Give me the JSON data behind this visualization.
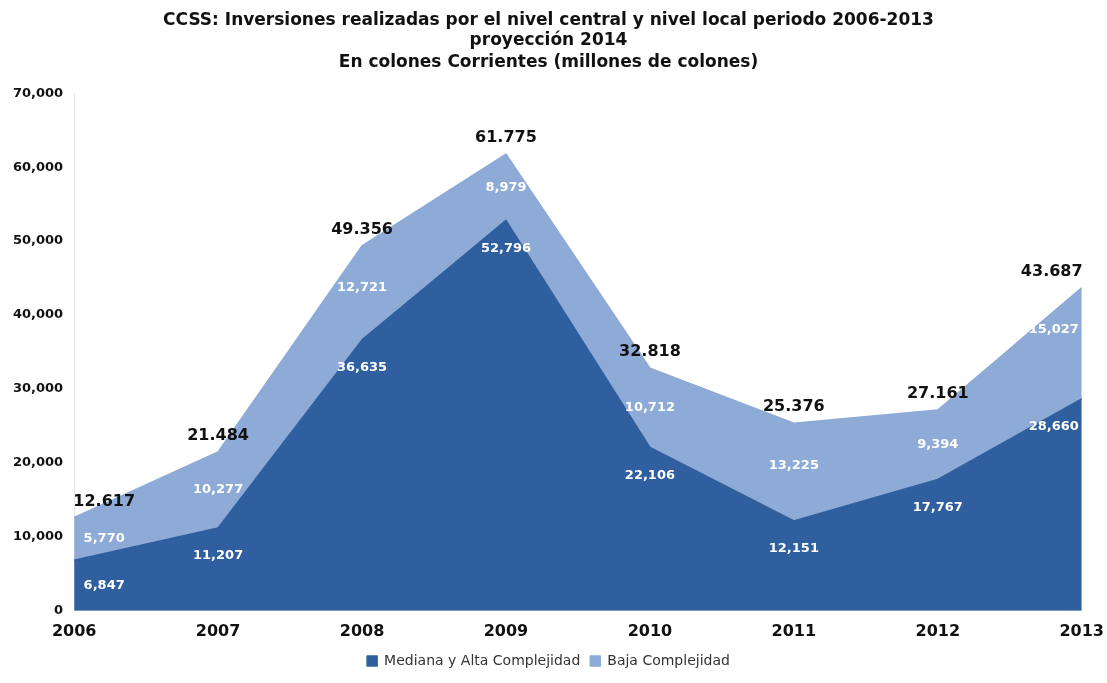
{
  "chart_data": {
    "type": "area",
    "title": "CCSS: Inversiones realizadas por el nivel central y nivel local periodo 2006-2013\nproyección 2014",
    "subtitle": "En colones Corrientes (millones de colones)",
    "categories": [
      "2006",
      "2007",
      "2008",
      "2009",
      "2010",
      "2011",
      "2012",
      "2013"
    ],
    "stacked": true,
    "series": [
      {
        "name": "Mediana y Alta Complejidad",
        "color": "#2f5f9e",
        "values": [
          6847,
          11207,
          36635,
          52796,
          22106,
          12151,
          17767,
          28660
        ],
        "value_labels": [
          "6,847",
          "11,207",
          "36,635",
          "52,796",
          "22,106",
          "12,151",
          "17,767",
          "28,660"
        ]
      },
      {
        "name": "Baja Complejidad",
        "color": "#8eaad6",
        "values": [
          5770,
          10277,
          12721,
          8979,
          10712,
          13225,
          9394,
          15027
        ],
        "value_labels": [
          "5,770",
          "10,277",
          "12,721",
          "8,979",
          "10,712",
          "13,225",
          "9,394",
          "15,027"
        ]
      }
    ],
    "ylim": [
      0,
      70000
    ],
    "yticks": [
      {
        "value": 0,
        "label": "0"
      },
      {
        "value": 10000,
        "label": "10,000"
      },
      {
        "value": 20000,
        "label": "20,000"
      },
      {
        "value": 30000,
        "label": "30,000"
      },
      {
        "value": 40000,
        "label": "40,000"
      },
      {
        "value": 50000,
        "label": "50,000"
      },
      {
        "value": 60000,
        "label": "60,000"
      },
      {
        "value": 70000,
        "label": "70,000"
      }
    ],
    "grid": false,
    "legend": "bottom",
    "annotations": [
      {
        "text": "12.617",
        "x": "2006",
        "y": 12617
      },
      {
        "text": "21.484",
        "x": "2007",
        "y": 21484
      },
      {
        "text": "49.356",
        "x": "2008",
        "y": 49356
      },
      {
        "text": "61.775",
        "x": "2009",
        "y": 61775
      },
      {
        "text": "32.818",
        "x": "2010",
        "y": 32818
      },
      {
        "text": "25.376",
        "x": "2011",
        "y": 25376
      },
      {
        "text": "27.161",
        "x": "2012",
        "y": 27161
      },
      {
        "text": "43.687",
        "x": "2013",
        "y": 43687
      }
    ]
  }
}
